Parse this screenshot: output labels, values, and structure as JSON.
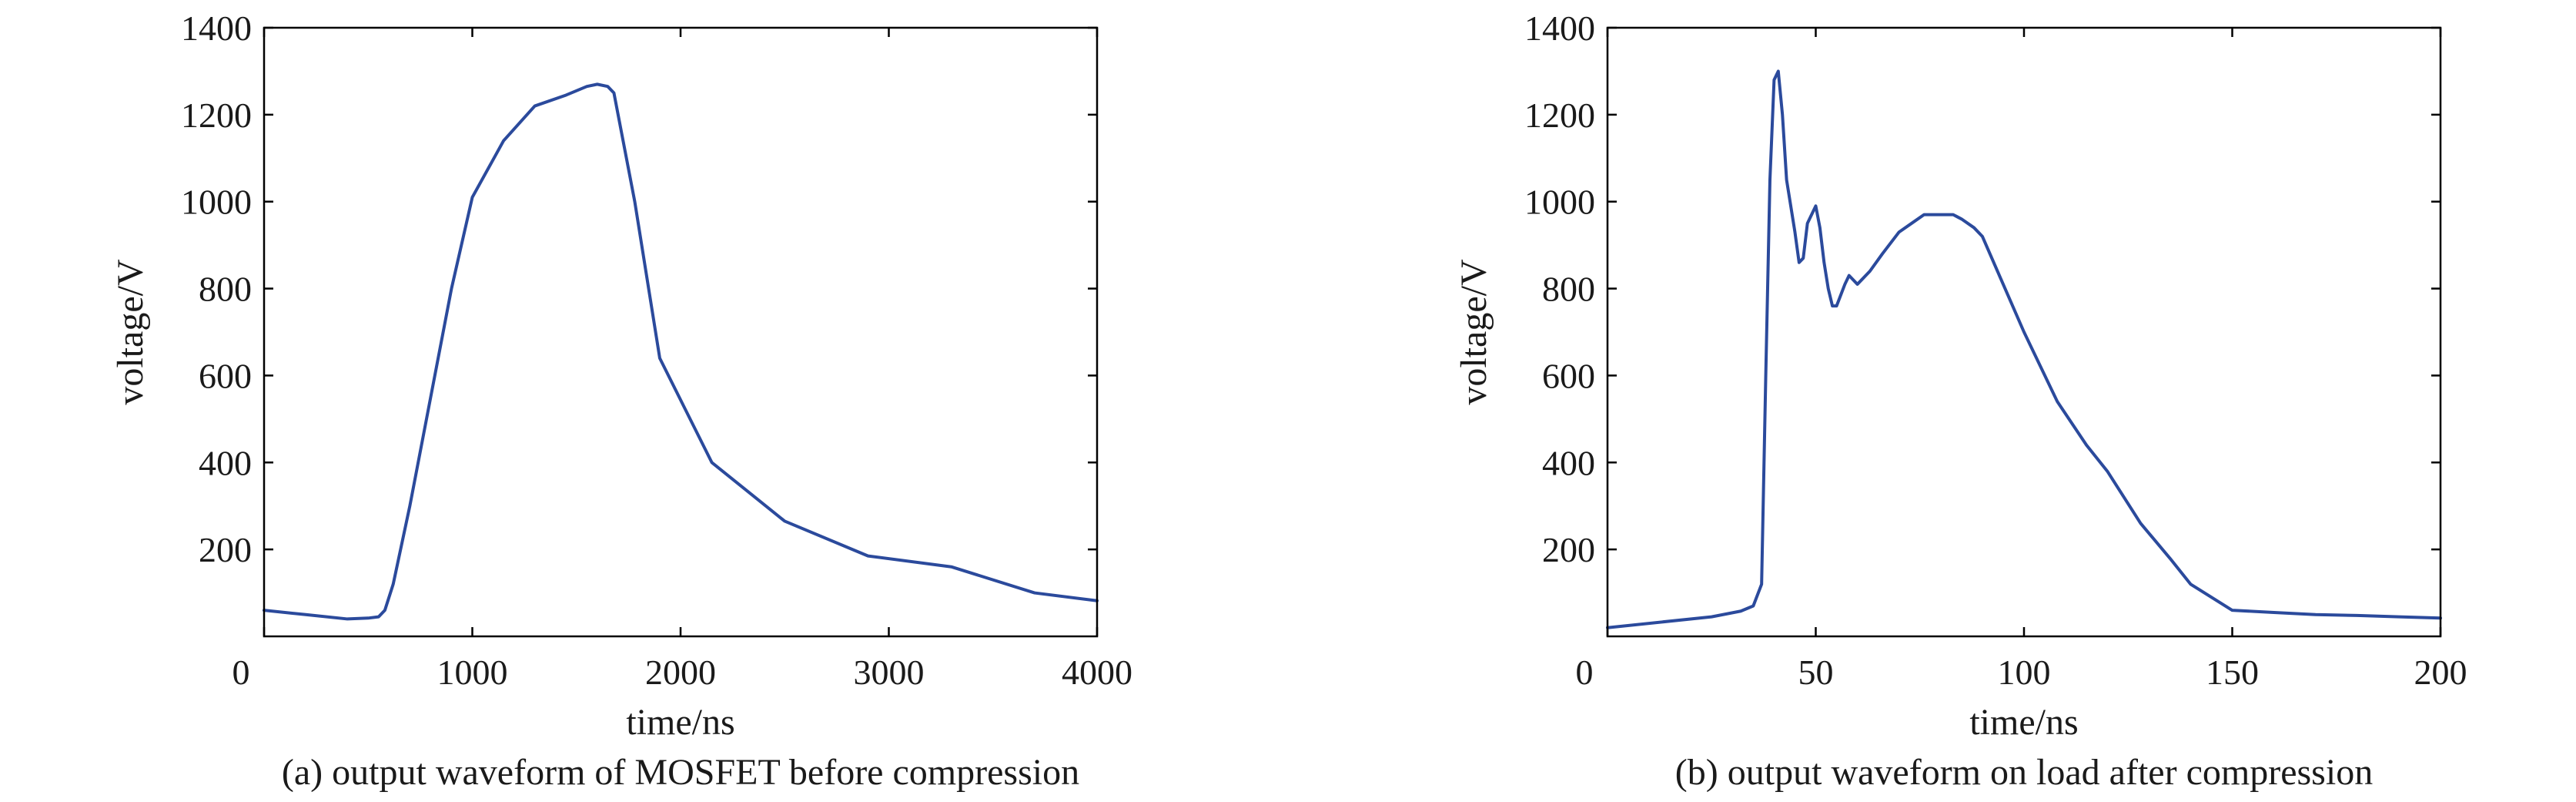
{
  "chart_data": [
    {
      "type": "line",
      "title": "",
      "caption": "(a) output waveform of MOSFET before compression",
      "xlabel": "time/ns",
      "ylabel": "voltage/V",
      "xlim": [
        0,
        4000
      ],
      "ylim": [
        0,
        1400
      ],
      "xticks": [
        0,
        1000,
        2000,
        3000,
        4000
      ],
      "yticks": [
        200,
        400,
        600,
        800,
        1000,
        1200,
        1400
      ],
      "grid": false,
      "legend": "none",
      "line_color": "#2b4a9c",
      "series": [
        {
          "x": [
            0,
            200,
            400,
            500,
            550,
            580,
            620,
            700,
            800,
            900,
            1000,
            1150,
            1300,
            1450,
            1550,
            1600,
            1650,
            1680,
            1700,
            1780,
            1900,
            2150,
            2500,
            2900,
            3300,
            3700,
            4000
          ],
          "y": [
            60,
            50,
            40,
            42,
            45,
            60,
            120,
            300,
            550,
            800,
            1010,
            1140,
            1220,
            1245,
            1265,
            1270,
            1265,
            1250,
            1200,
            1000,
            640,
            400,
            265,
            185,
            160,
            100,
            82
          ]
        }
      ]
    },
    {
      "type": "line",
      "title": "",
      "caption": "(b) output waveform on load after compression",
      "xlabel": "time/ns",
      "ylabel": "voltage/V",
      "xlim": [
        0,
        200
      ],
      "ylim": [
        0,
        1400
      ],
      "xticks": [
        0,
        50,
        100,
        150,
        200
      ],
      "yticks": [
        200,
        400,
        600,
        800,
        1000,
        1200,
        1400
      ],
      "grid": false,
      "legend": "none",
      "line_color": "#2b4a9c",
      "series": [
        {
          "x": [
            0,
            25,
            32,
            35,
            37,
            38,
            39,
            40,
            41,
            42,
            43,
            45,
            46,
            47,
            48,
            49,
            50,
            51,
            52,
            53,
            54,
            55,
            57,
            58,
            60,
            63,
            66,
            70,
            73,
            76,
            80,
            83,
            85,
            88,
            90,
            95,
            100,
            108,
            115,
            120,
            128,
            135,
            140,
            150,
            160,
            170,
            180,
            190,
            200
          ],
          "y": [
            20,
            45,
            58,
            70,
            120,
            600,
            1050,
            1280,
            1300,
            1200,
            1050,
            930,
            860,
            870,
            950,
            970,
            990,
            940,
            860,
            800,
            760,
            760,
            810,
            830,
            810,
            840,
            880,
            930,
            950,
            970,
            970,
            970,
            960,
            940,
            920,
            810,
            700,
            540,
            440,
            380,
            260,
            180,
            120,
            60,
            55,
            50,
            48,
            45,
            42
          ]
        }
      ]
    }
  ]
}
